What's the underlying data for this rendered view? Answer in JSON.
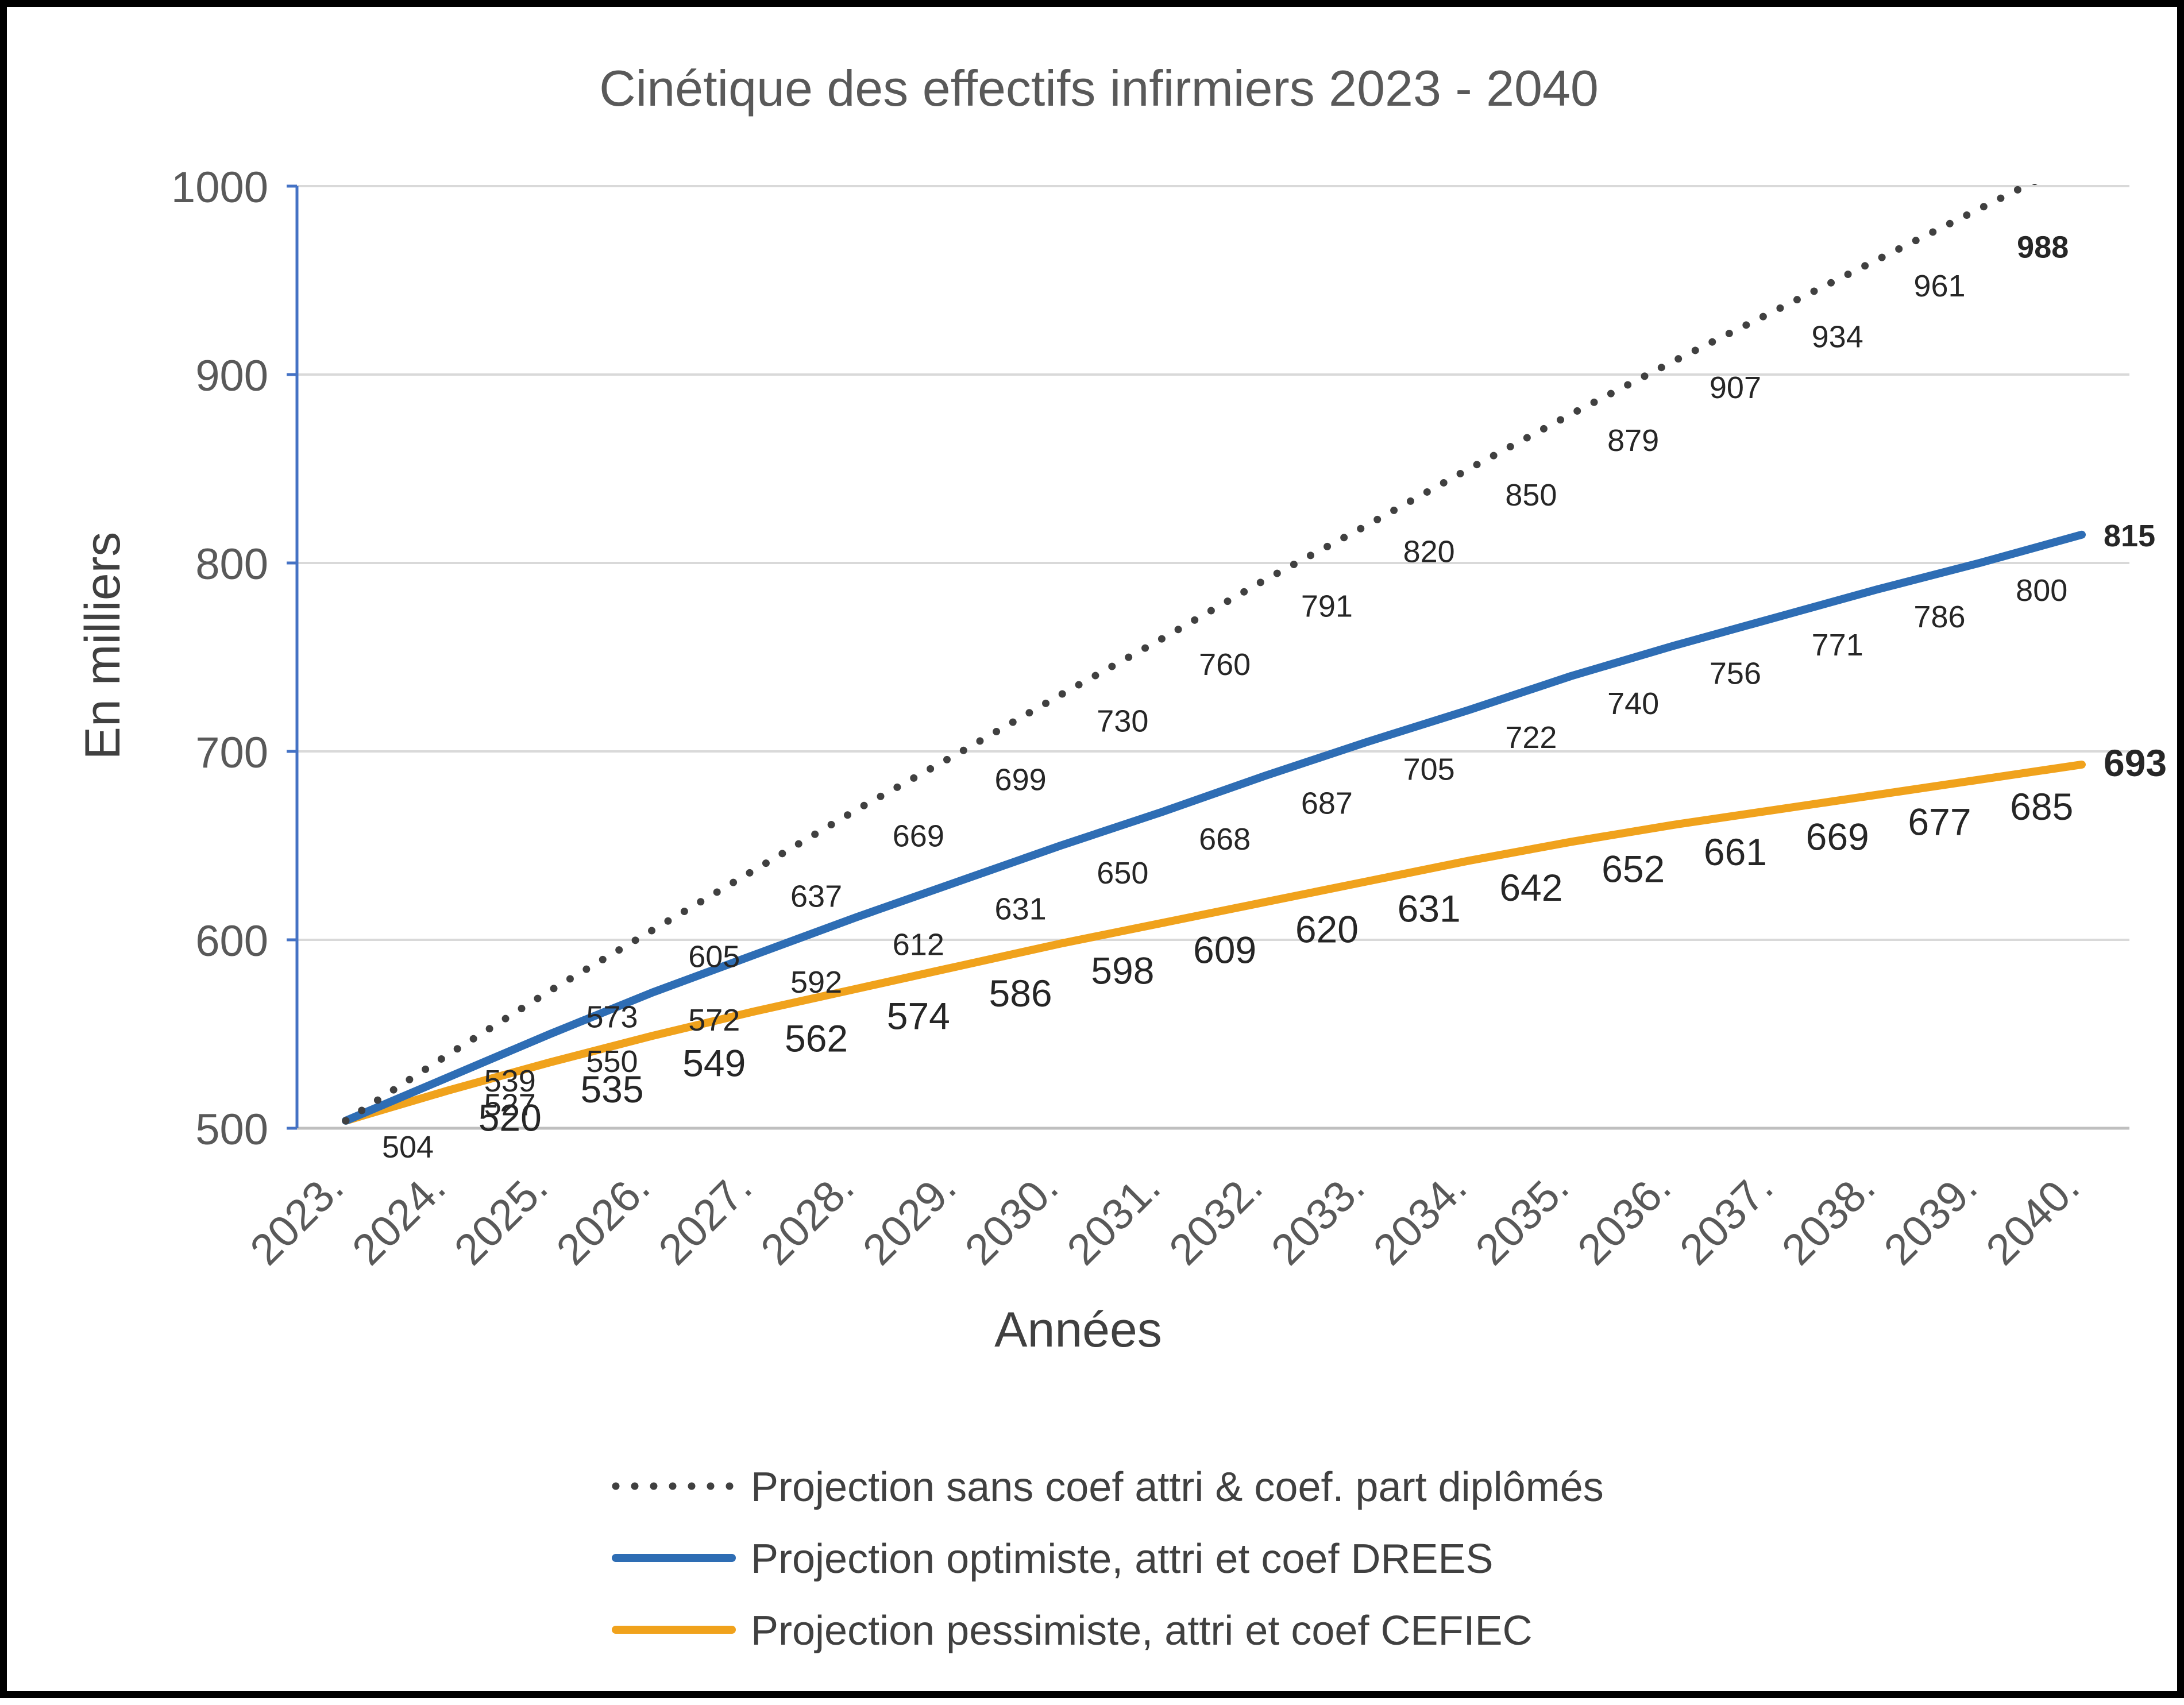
{
  "chart_data": {
    "type": "line",
    "title": "Cinétique des effectifs infirmiers 2023 - 2040",
    "xlabel": "Années",
    "ylabel": "En milliers",
    "ylim": [
      500,
      1000
    ],
    "yticks": [
      "500",
      "600",
      "700",
      "800",
      "900",
      "1000"
    ],
    "grid": true,
    "legend_position": "bottom",
    "categories": [
      "2023.",
      "2024.",
      "2025.",
      "2026.",
      "2027.",
      "2028.",
      "2029.",
      "2030.",
      "2031.",
      "2032.",
      "2033.",
      "2034.",
      "2035.",
      "2036.",
      "2037.",
      "2038.",
      "2039.",
      "2040."
    ],
    "series": [
      {
        "name": "Projection sans coef attri & coef. part diplômés",
        "color": "#404040",
        "style": "dotted",
        "values": [
          504,
          539,
          573,
          605,
          637,
          669,
          699,
          730,
          760,
          791,
          820,
          850,
          879,
          907,
          934,
          961,
          988,
          1015
        ],
        "labels": [
          "504",
          "539",
          "573",
          "605",
          "637",
          "669",
          "699",
          "730",
          "760",
          "791",
          "820",
          "850",
          "879",
          "907",
          "934",
          "961",
          "988",
          ""
        ]
      },
      {
        "name": "Projection optimiste, attri et coef DREES",
        "color": "#2E6DB4",
        "style": "solid",
        "values": [
          504,
          527,
          550,
          572,
          592,
          612,
          631,
          650,
          668,
          687,
          705,
          722,
          740,
          756,
          771,
          786,
          800,
          815
        ],
        "labels": [
          "",
          "527",
          "550",
          "572",
          "592",
          "612",
          "631",
          "650",
          "668",
          "687",
          "705",
          "722",
          "740",
          "756",
          "771",
          "786",
          "800",
          "815"
        ]
      },
      {
        "name": "Projection pessimiste, attri et coef CEFIEC",
        "color": "#F0A21C",
        "style": "solid",
        "values": [
          504,
          520,
          535,
          549,
          562,
          574,
          586,
          598,
          609,
          620,
          631,
          642,
          652,
          661,
          669,
          677,
          685,
          693
        ],
        "labels": [
          "",
          "520",
          "535",
          "549",
          "562",
          "574",
          "586",
          "598",
          "609",
          "620",
          "631",
          "642",
          "652",
          "661",
          "669",
          "677",
          "685",
          "693"
        ]
      }
    ]
  }
}
